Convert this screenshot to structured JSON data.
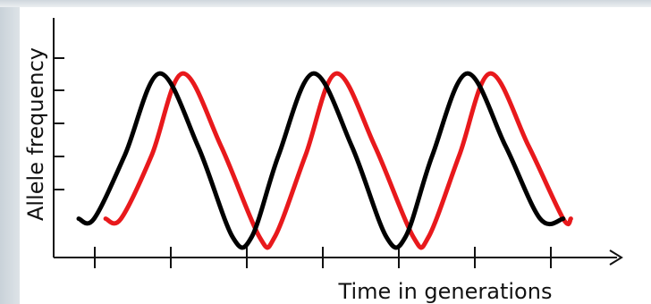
{
  "chart_data": {
    "type": "line",
    "title": "",
    "xlabel": "Time in generations",
    "ylabel": "Allele frequency",
    "x_ticks": 7,
    "y_ticks": 5,
    "grid": false,
    "legend": "none",
    "series": [
      {
        "color": "#000000",
        "x": [
          0.0,
          0.2,
          0.6,
          1.05,
          1.55,
          2.0,
          2.25,
          2.6,
          3.05,
          3.55,
          4.0,
          4.25,
          4.6,
          5.05,
          5.55,
          6.0,
          6.3
        ],
        "y": [
          0.15,
          0.15,
          0.5,
          0.95,
          0.55,
          0.05,
          0.05,
          0.5,
          0.95,
          0.55,
          0.05,
          0.05,
          0.5,
          0.95,
          0.55,
          0.15,
          0.15
        ]
      },
      {
        "color": "#e8191c",
        "x": [
          0.35,
          0.55,
          0.95,
          1.35,
          1.85,
          2.35,
          2.55,
          2.95,
          3.35,
          3.85,
          4.35,
          4.55,
          4.95,
          5.35,
          5.85,
          6.3,
          6.4
        ],
        "y": [
          0.15,
          0.15,
          0.5,
          0.95,
          0.55,
          0.05,
          0.05,
          0.5,
          0.95,
          0.55,
          0.05,
          0.05,
          0.5,
          0.95,
          0.55,
          0.15,
          0.15
        ]
      }
    ]
  }
}
